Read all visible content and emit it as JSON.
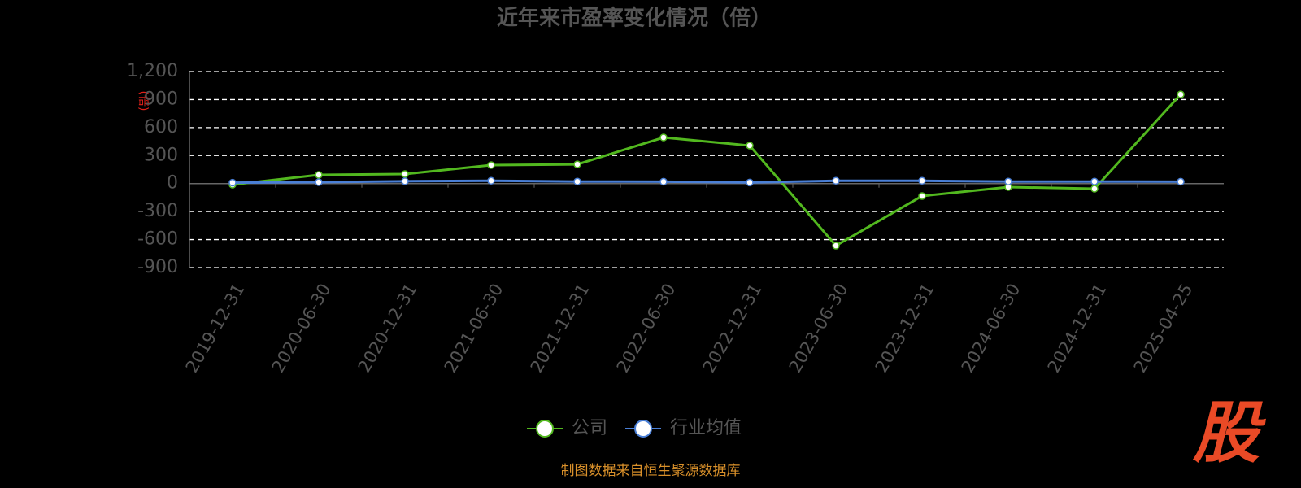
{
  "chart_data": {
    "type": "line",
    "title": "近年来市盈率变化情况（倍）",
    "y_label": "(倍)",
    "categories": [
      "2019-12-31",
      "2020-06-30",
      "2020-12-31",
      "2021-06-30",
      "2021-12-31",
      "2022-06-30",
      "2022-12-31",
      "2023-06-30",
      "2023-12-31",
      "2024-06-30",
      "2024-12-31",
      "2025-04-25"
    ],
    "series": [
      {
        "name": "公司",
        "color": "#52b81f",
        "values": [
          -11,
          93,
          102,
          198,
          206,
          494,
          407,
          -665,
          -133,
          -37,
          -55,
          955
        ]
      },
      {
        "name": "行业均值",
        "color": "#4a7fd6",
        "values": [
          10,
          15,
          25,
          30,
          22,
          20,
          12,
          30,
          30,
          22,
          22,
          20
        ]
      }
    ],
    "ylim": [
      -900,
      1200
    ],
    "yticks": [
      -900,
      -600,
      -300,
      0,
      300,
      600,
      900,
      {
        "value": 1200,
        "label": "1,200"
      }
    ],
    "grid": true,
    "legend": "bottom",
    "source": "制图数据来自恒生聚源数据库",
    "logo": "股"
  }
}
